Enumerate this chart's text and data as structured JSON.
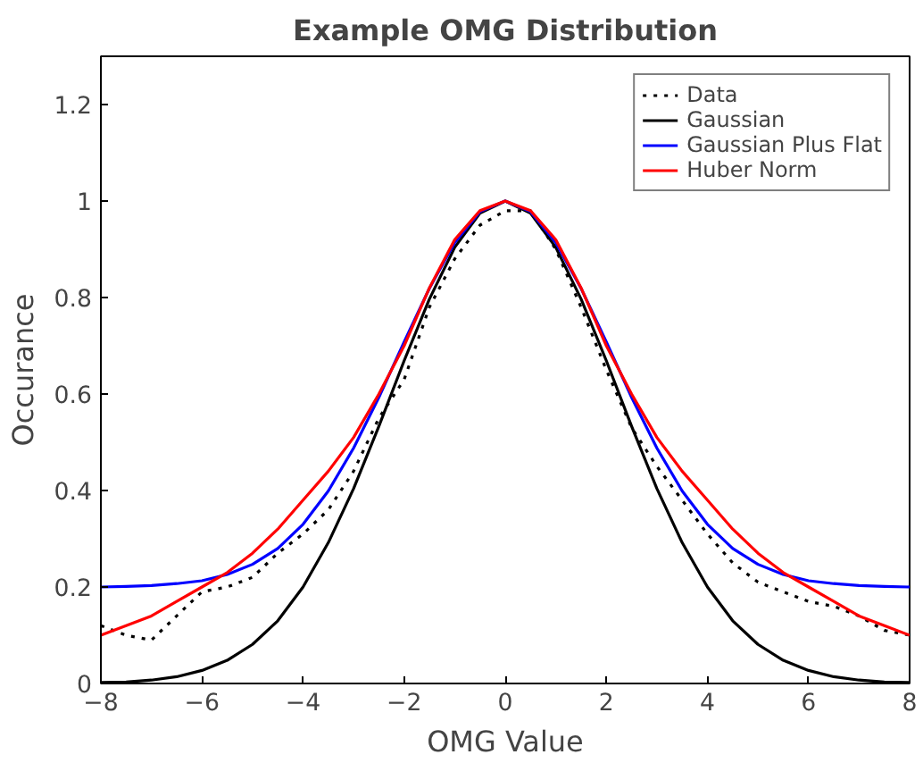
{
  "chart_data": {
    "type": "line",
    "title": "Example OMG Distribution",
    "xlabel": "OMG Value",
    "ylabel": "Occurance",
    "x": [
      -8,
      -7.5,
      -7,
      -6.5,
      -6,
      -5.5,
      -5,
      -4.5,
      -4,
      -3.5,
      -3,
      -2.5,
      -2,
      -1.5,
      -1,
      -0.5,
      0,
      0.5,
      1,
      1.5,
      2,
      2.5,
      3,
      3.5,
      4,
      4.5,
      5,
      5.5,
      6,
      6.5,
      7,
      7.5,
      8
    ],
    "series": [
      {
        "name": "Data",
        "color": "#000000",
        "line_style": "dotted",
        "values": [
          0.12,
          0.1,
          0.09,
          0.14,
          0.19,
          0.2,
          0.22,
          0.27,
          0.31,
          0.36,
          0.44,
          0.55,
          0.63,
          0.78,
          0.88,
          0.95,
          0.98,
          0.98,
          0.9,
          0.78,
          0.65,
          0.53,
          0.45,
          0.38,
          0.31,
          0.25,
          0.21,
          0.19,
          0.17,
          0.16,
          0.14,
          0.11,
          0.1
        ]
      },
      {
        "name": "Gaussian",
        "color": "#000000",
        "line_style": "solid",
        "values": [
          0.002,
          0.003,
          0.007,
          0.014,
          0.027,
          0.048,
          0.081,
          0.13,
          0.2,
          0.292,
          0.404,
          0.533,
          0.669,
          0.797,
          0.904,
          0.975,
          1,
          0.975,
          0.904,
          0.797,
          0.669,
          0.533,
          0.404,
          0.292,
          0.2,
          0.13,
          0.081,
          0.048,
          0.027,
          0.014,
          0.007,
          0.003,
          0.002
        ]
      },
      {
        "name": "Gaussian Plus Flat",
        "color": "#0000ff",
        "line_style": "solid",
        "values": [
          0.2,
          0.201,
          0.203,
          0.207,
          0.213,
          0.226,
          0.247,
          0.28,
          0.33,
          0.399,
          0.488,
          0.593,
          0.708,
          0.819,
          0.914,
          0.978,
          1,
          0.978,
          0.914,
          0.819,
          0.708,
          0.593,
          0.488,
          0.399,
          0.33,
          0.28,
          0.247,
          0.226,
          0.213,
          0.207,
          0.203,
          0.201,
          0.2
        ]
      },
      {
        "name": "Huber Norm",
        "color": "#ff0000",
        "line_style": "solid",
        "values": [
          0.1,
          0.12,
          0.14,
          0.17,
          0.2,
          0.23,
          0.27,
          0.32,
          0.38,
          0.44,
          0.51,
          0.6,
          0.7,
          0.82,
          0.92,
          0.98,
          1,
          0.98,
          0.92,
          0.82,
          0.7,
          0.6,
          0.51,
          0.44,
          0.38,
          0.32,
          0.27,
          0.23,
          0.2,
          0.17,
          0.14,
          0.12,
          0.1
        ]
      }
    ],
    "xlim": [
      -8,
      8
    ],
    "xticks": [
      -8,
      -6,
      -4,
      -2,
      0,
      2,
      4,
      6,
      8
    ],
    "ylim": [
      0,
      1.3
    ],
    "yticks": [
      0,
      0.2,
      0.4,
      0.6,
      0.8,
      1,
      1.2
    ],
    "grid": false,
    "legend": "top right"
  }
}
